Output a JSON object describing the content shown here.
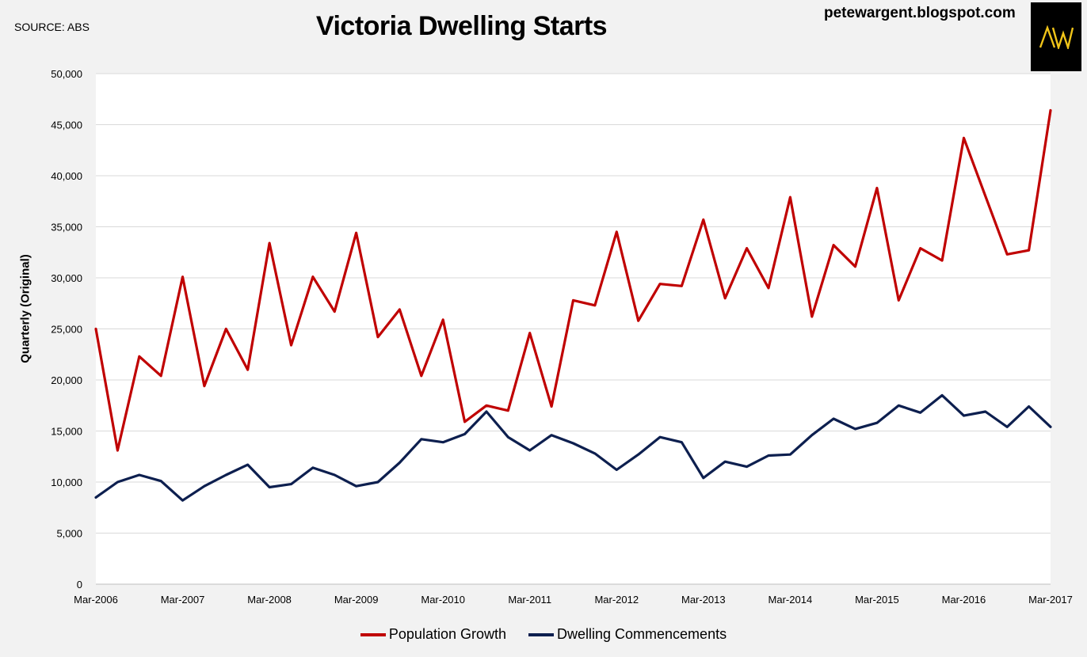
{
  "header": {
    "source": "SOURCE: ABS",
    "title": "Victoria Dwelling Starts",
    "blog": "petewargent.blogspot.com",
    "logo_text": "AW"
  },
  "chart_data": {
    "type": "line",
    "title": "Victoria Dwelling Starts",
    "xlabel": "",
    "ylabel": "Quarterly (Original)",
    "ylim": [
      0,
      50000
    ],
    "ytick_labels": [
      "0",
      "5,000",
      "10,000",
      "15,000",
      "20,000",
      "25,000",
      "30,000",
      "35,000",
      "40,000",
      "45,000",
      "50,000"
    ],
    "xtick_labels": [
      "Mar-2006",
      "Mar-2007",
      "Mar-2008",
      "Mar-2009",
      "Mar-2010",
      "Mar-2011",
      "Mar-2012",
      "Mar-2013",
      "Mar-2014",
      "Mar-2015",
      "Mar-2016",
      "Mar-2017"
    ],
    "grid": true,
    "legend_position": "bottom",
    "x": [
      "Mar-2006",
      "Jun-2006",
      "Sep-2006",
      "Dec-2006",
      "Mar-2007",
      "Jun-2007",
      "Sep-2007",
      "Dec-2007",
      "Mar-2008",
      "Jun-2008",
      "Sep-2008",
      "Dec-2008",
      "Mar-2009",
      "Jun-2009",
      "Sep-2009",
      "Dec-2009",
      "Mar-2010",
      "Jun-2010",
      "Sep-2010",
      "Dec-2010",
      "Mar-2011",
      "Jun-2011",
      "Sep-2011",
      "Dec-2011",
      "Mar-2012",
      "Jun-2012",
      "Sep-2012",
      "Dec-2012",
      "Mar-2013",
      "Jun-2013",
      "Sep-2013",
      "Dec-2013",
      "Mar-2014",
      "Jun-2014",
      "Sep-2014",
      "Dec-2014",
      "Mar-2015",
      "Jun-2015",
      "Sep-2015",
      "Dec-2015",
      "Mar-2016",
      "Jun-2016",
      "Sep-2016",
      "Dec-2016",
      "Mar-2017"
    ],
    "series": [
      {
        "name": "Population Growth",
        "color": "#c00000",
        "values": [
          25000,
          13100,
          22300,
          20400,
          30100,
          19400,
          25000,
          21000,
          33400,
          23400,
          30100,
          26700,
          34400,
          24200,
          26900,
          20400,
          25900,
          15900,
          17500,
          17000,
          24600,
          17400,
          27800,
          27300,
          34500,
          25800,
          29400,
          29200,
          35700,
          28000,
          32900,
          29000,
          37900,
          26200,
          33200,
          31100,
          38800,
          27800,
          32900,
          31700,
          43700,
          38000,
          32300,
          32700,
          46400
        ]
      },
      {
        "name": "Dwelling Commencements",
        "color": "#0d1f4f",
        "values": [
          8500,
          10000,
          10700,
          10100,
          8200,
          9600,
          10700,
          11700,
          9500,
          9800,
          11400,
          10700,
          9600,
          10000,
          11900,
          14200,
          13900,
          14700,
          16900,
          14400,
          13100,
          14600,
          13800,
          12800,
          11200,
          12700,
          14400,
          13900,
          10400,
          12000,
          11500,
          12600,
          12700,
          14600,
          16200,
          15200,
          15800,
          17500,
          16800,
          18500,
          16500,
          16900,
          15400,
          17400,
          15400
        ]
      }
    ]
  }
}
